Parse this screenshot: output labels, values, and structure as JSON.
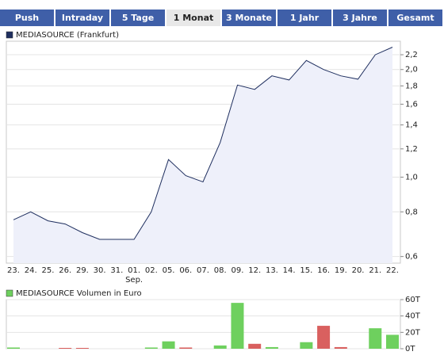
{
  "tabs": [
    "Push",
    "Intraday",
    "5 Tage",
    "1 Monat",
    "3 Monate",
    "1 Jahr",
    "3 Jahre",
    "Gesamt"
  ],
  "selected_tab": 3,
  "chart_data": [
    {
      "type": "line",
      "title": "MEDIASOURCE (Frankfurt)",
      "color": "#1f2f5f",
      "fill": "#eef0fa",
      "categories": [
        "23.",
        "24.",
        "25.",
        "26.",
        "29.",
        "30.",
        "31.",
        "01.",
        "02.",
        "05.",
        "06.",
        "07.",
        "08.",
        "09.",
        "12.",
        "13.",
        "14.",
        "15.",
        "16.",
        "19.",
        "20.",
        "21.",
        "22."
      ],
      "x_sublabels": [
        null,
        null,
        null,
        null,
        null,
        null,
        null,
        "Sep.",
        null,
        null,
        null,
        null,
        null,
        null,
        null,
        null,
        null,
        null,
        null,
        null,
        null,
        null,
        null
      ],
      "values": [
        0.76,
        0.8,
        0.755,
        0.74,
        0.7,
        0.67,
        0.67,
        0.67,
        0.8,
        1.12,
        1.01,
        0.97,
        1.25,
        1.81,
        1.76,
        1.92,
        1.87,
        2.12,
        2.0,
        1.92,
        1.88,
        2.2,
        2.31
      ],
      "log_scale": true,
      "ylim": [
        0.575,
        2.4
      ],
      "yticks": [
        {
          "value": 0.6,
          "label": "0,6"
        },
        {
          "value": 0.8,
          "label": "0,8"
        },
        {
          "value": 1.0,
          "label": "1,0"
        },
        {
          "value": 1.2,
          "label": "1,2"
        },
        {
          "value": 1.4,
          "label": "1,4"
        },
        {
          "value": 1.6,
          "label": "1,6"
        },
        {
          "value": 1.8,
          "label": "1,8"
        },
        {
          "value": 2.0,
          "label": "2,0"
        },
        {
          "value": 2.2,
          "label": "2,2"
        }
      ],
      "grid": true
    },
    {
      "type": "bar",
      "title": "MEDIASOURCE Volumen in Euro",
      "values": [
        1.5,
        0,
        0,
        1,
        1,
        0,
        0,
        0,
        1.5,
        9,
        1.5,
        0,
        4,
        56,
        6,
        2,
        0,
        8,
        28,
        2,
        0,
        25,
        17
      ],
      "colors": [
        "#6ed05e",
        "#6ed05e",
        "#6ed05e",
        "#d9605f",
        "#d9605f",
        "#6ed05e",
        "#6ed05e",
        "#6ed05e",
        "#6ed05e",
        "#6ed05e",
        "#d9605f",
        "#6ed05e",
        "#6ed05e",
        "#6ed05e",
        "#d9605f",
        "#6ed05e",
        "#6ed05e",
        "#6ed05e",
        "#d9605f",
        "#d9605f",
        "#6ed05e",
        "#6ed05e",
        "#6ed05e"
      ],
      "ylim": [
        0,
        60
      ],
      "yticks": [
        {
          "value": 0,
          "label": "0T"
        },
        {
          "value": 20,
          "label": "20T"
        },
        {
          "value": 40,
          "label": "40T"
        },
        {
          "value": 60,
          "label": "60T"
        }
      ],
      "grid": true
    }
  ]
}
